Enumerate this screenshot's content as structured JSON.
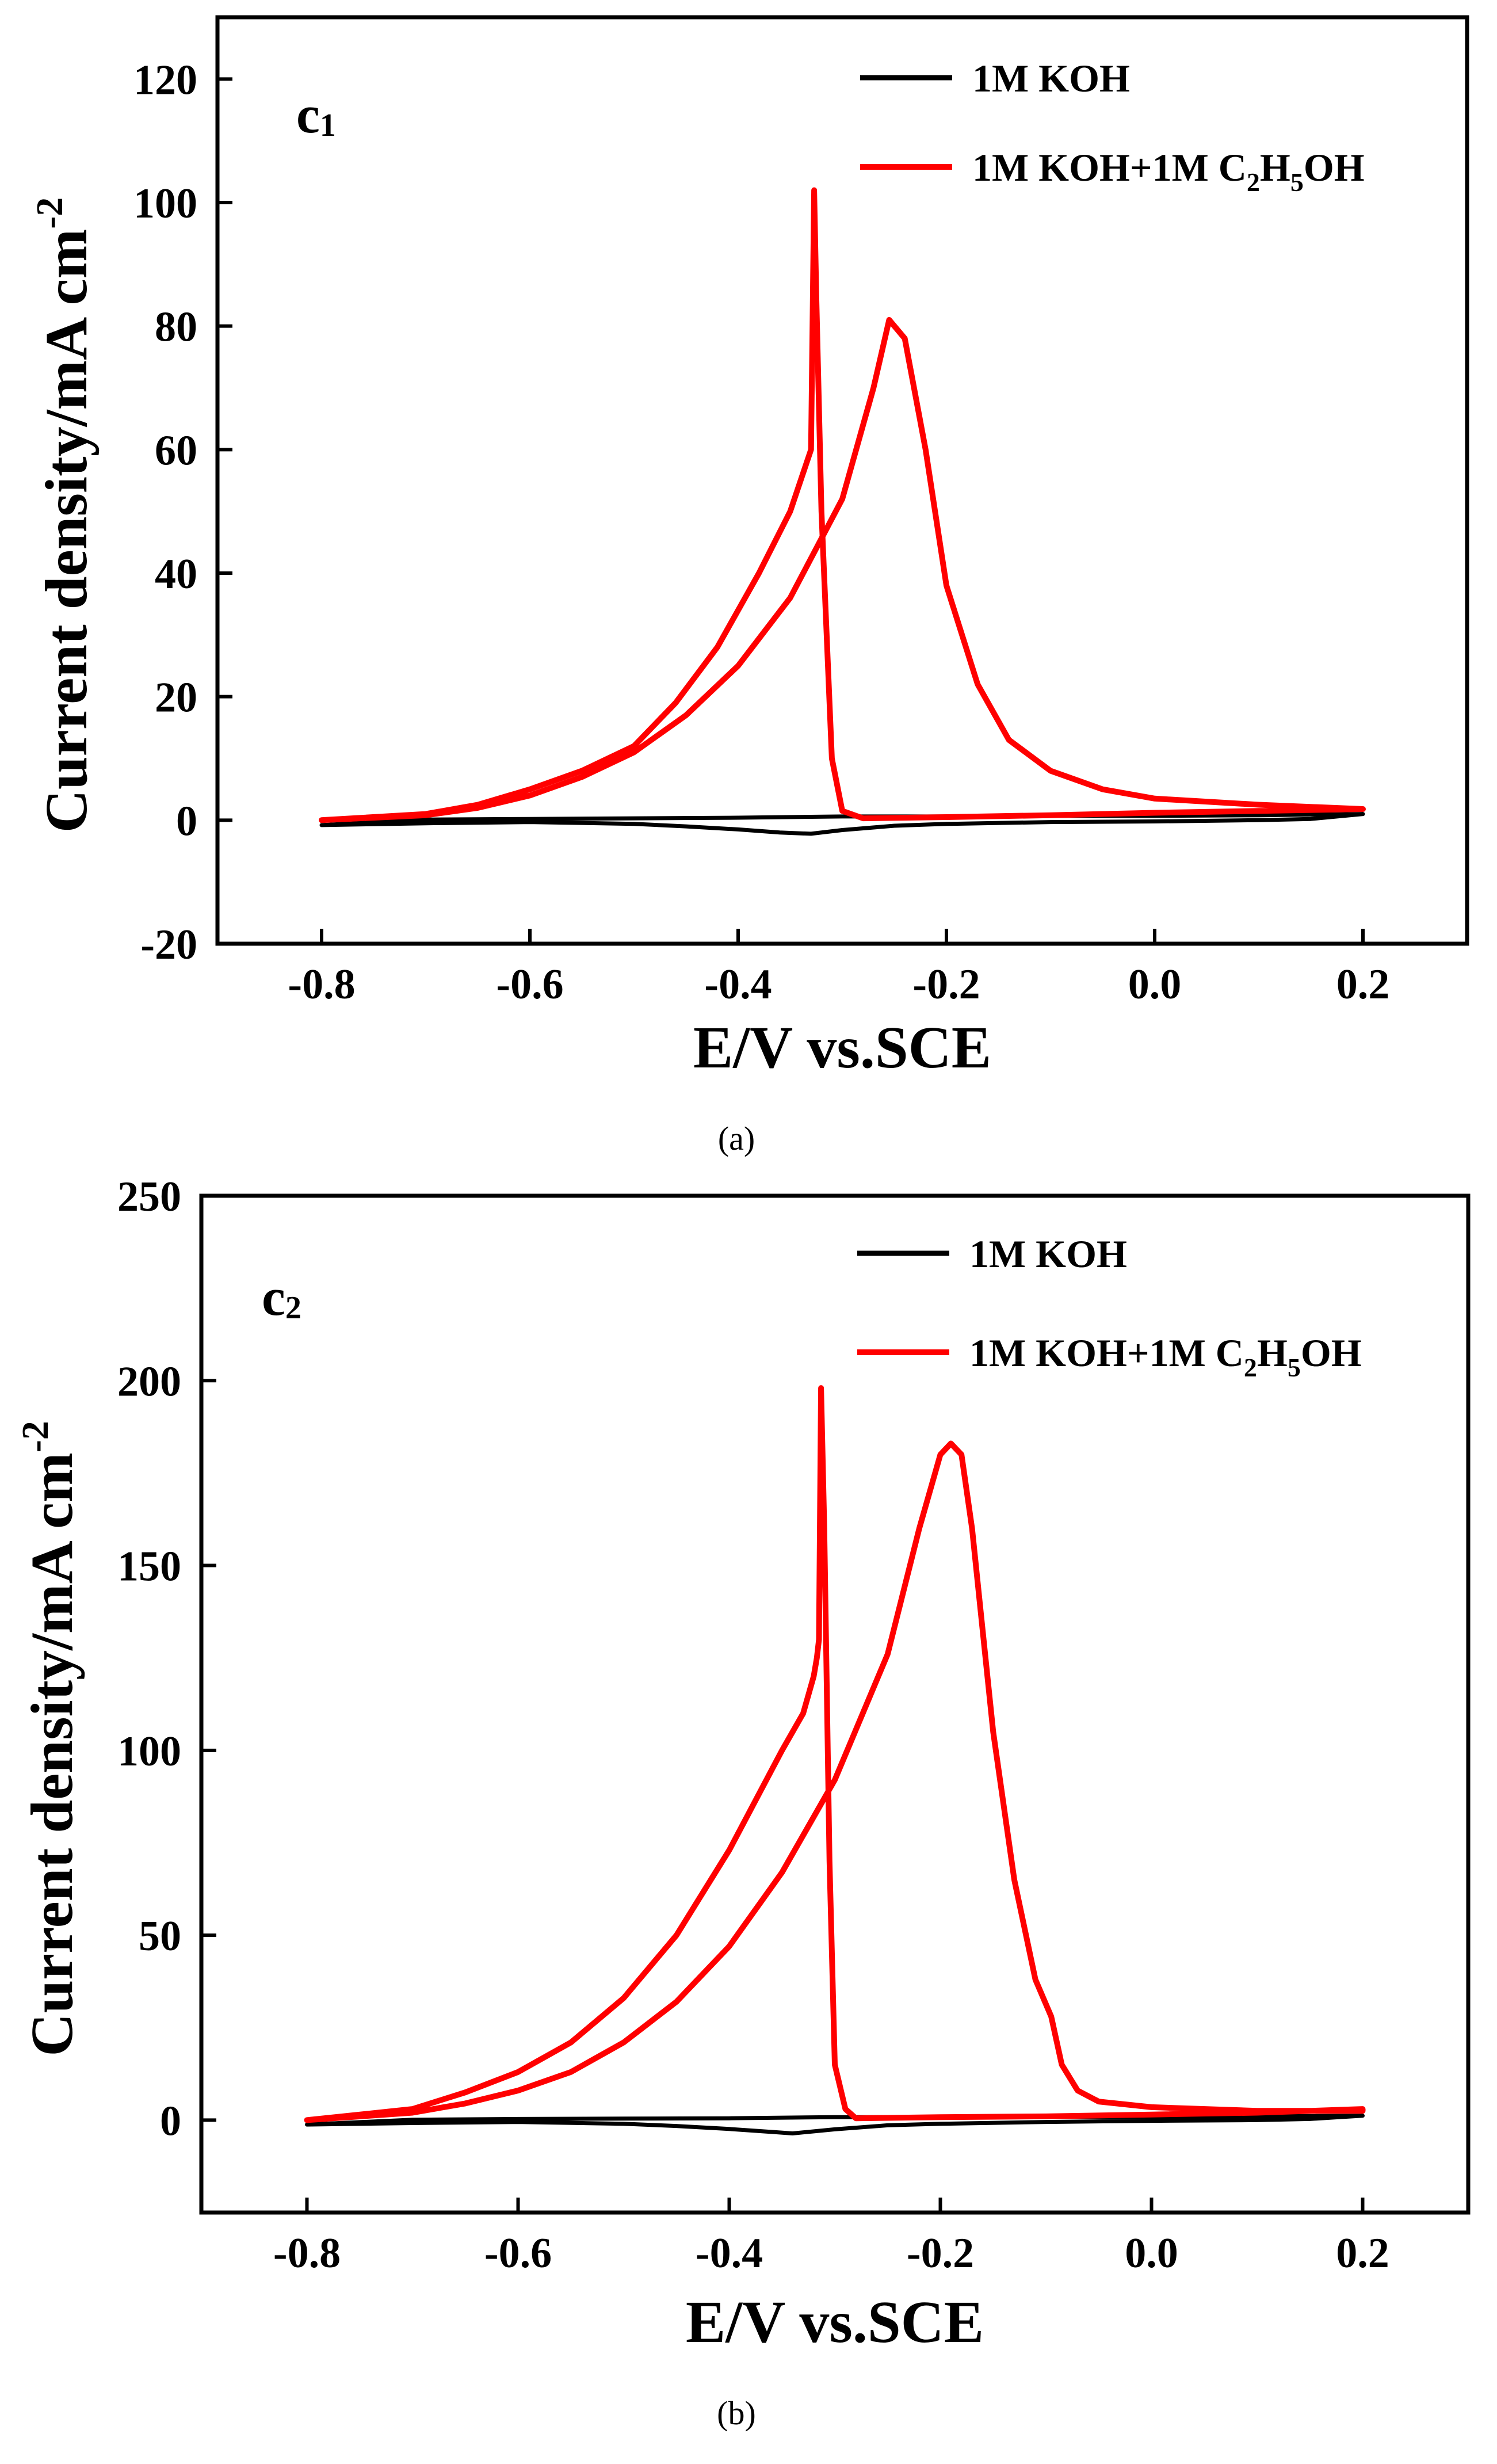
{
  "chart_data": [
    {
      "type": "line",
      "panel_label": "c",
      "panel_label_sub": "1",
      "caption": "(a)",
      "xlabel": "E/V vs.SCE",
      "ylabel": "Current density/mA cm",
      "ylabel_sup": "-2",
      "xlim": [
        -0.9,
        0.3
      ],
      "ylim": [
        -20,
        130
      ],
      "xticks": [
        -0.8,
        -0.6,
        -0.4,
        -0.2,
        0.0,
        0.2
      ],
      "xtick_labels": [
        "-0.8",
        "-0.6",
        "-0.4",
        "-0.2",
        "0.0",
        "0.2"
      ],
      "yticks": [
        -20,
        0,
        20,
        40,
        60,
        80,
        100,
        120
      ],
      "ytick_labels": [
        "-20",
        "0",
        "20",
        "40",
        "60",
        "80",
        "100",
        "120"
      ],
      "legend": {
        "placement": "top-right",
        "entries": [
          {
            "label": "1M KOH",
            "color": "#000000"
          },
          {
            "label_parts": [
              "1M KOH+1M C",
              "2",
              "H",
              "5",
              "OH"
            ],
            "color": "#ff0000"
          }
        ]
      },
      "series": [
        {
          "name": "1M KOH",
          "color": "#000000",
          "x": [
            -0.8,
            -0.7,
            -0.6,
            -0.5,
            -0.45,
            -0.4,
            -0.36,
            -0.33,
            -0.3,
            -0.25,
            -0.2,
            -0.1,
            0.0,
            0.1,
            0.15,
            0.2,
            0.2,
            0.1,
            0.0,
            -0.1,
            -0.2,
            -0.3,
            -0.4,
            -0.5,
            -0.6,
            -0.7,
            -0.8
          ],
          "y": [
            -0.8,
            -0.5,
            -0.3,
            -0.6,
            -1.0,
            -1.5,
            -2.0,
            -2.2,
            -1.6,
            -0.9,
            -0.6,
            -0.3,
            -0.2,
            0.0,
            0.2,
            1.0,
            1.0,
            0.8,
            0.7,
            0.7,
            0.6,
            0.6,
            0.4,
            0.3,
            0.2,
            0.1,
            -0.8
          ]
        },
        {
          "name": "1M KOH+1M C2H5OH",
          "color": "#ff0000",
          "x": [
            -0.8,
            -0.7,
            -0.65,
            -0.6,
            -0.55,
            -0.5,
            -0.45,
            -0.4,
            -0.35,
            -0.3,
            -0.27,
            -0.255,
            -0.24,
            -0.22,
            -0.2,
            -0.17,
            -0.14,
            -0.1,
            -0.05,
            0.0,
            0.1,
            0.2,
            0.2,
            0.1,
            0.0,
            -0.1,
            -0.2,
            -0.28,
            -0.3,
            -0.31,
            -0.32,
            -0.325,
            -0.327,
            -0.33,
            -0.35,
            -0.38,
            -0.42,
            -0.46,
            -0.5,
            -0.55,
            -0.6,
            -0.65,
            -0.7,
            -0.8
          ],
          "y": [
            0,
            0.8,
            2.0,
            4.0,
            7.0,
            11.0,
            17.0,
            25.0,
            36.0,
            52.0,
            70.0,
            81.0,
            78.0,
            60.0,
            38.0,
            22.0,
            13.0,
            8.0,
            5.0,
            3.5,
            2.5,
            1.8,
            1.8,
            1.5,
            1.2,
            0.8,
            0.5,
            0.3,
            1.5,
            10.0,
            50.0,
            85.0,
            102.0,
            60.0,
            50.0,
            40.0,
            28.0,
            19.0,
            12.0,
            8.0,
            5.0,
            2.5,
            1.0,
            0
          ]
        }
      ]
    },
    {
      "type": "line",
      "panel_label": "c",
      "panel_label_sub": "2",
      "caption": "(b)",
      "xlabel": "E/V vs.SCE",
      "ylabel": "Current density/mA cm",
      "ylabel_sup": "-2",
      "xlim": [
        -0.9,
        0.3
      ],
      "ylim": [
        -25,
        250
      ],
      "xticks": [
        -0.8,
        -0.6,
        -0.4,
        -0.2,
        0.0,
        0.2
      ],
      "xtick_labels": [
        "-0.8",
        "-0.6",
        "-0.4",
        "-0.2",
        "0.0",
        "0.2"
      ],
      "yticks": [
        0,
        50,
        100,
        150,
        200,
        250
      ],
      "ytick_labels": [
        "0",
        "50",
        "100",
        "150",
        "200",
        "250"
      ],
      "legend": {
        "placement": "top-right",
        "entries": [
          {
            "label": "1M KOH",
            "color": "#000000"
          },
          {
            "label_parts": [
              "1M KOH+1M C",
              "2",
              "H",
              "5",
              "OH"
            ],
            "color": "#ff0000"
          }
        ]
      },
      "series": [
        {
          "name": "1M KOH",
          "color": "#000000",
          "x": [
            -0.8,
            -0.7,
            -0.6,
            -0.5,
            -0.45,
            -0.4,
            -0.36,
            -0.34,
            -0.3,
            -0.25,
            -0.2,
            -0.1,
            0.0,
            0.1,
            0.15,
            0.2,
            0.2,
            0.1,
            0.0,
            -0.1,
            -0.2,
            -0.3,
            -0.4,
            -0.5,
            -0.6,
            -0.7,
            -0.8
          ],
          "y": [
            -1.2,
            -0.8,
            -0.5,
            -1.0,
            -1.6,
            -2.4,
            -3.2,
            -3.6,
            -2.5,
            -1.4,
            -1.0,
            -0.5,
            -0.2,
            0.0,
            0.3,
            1.2,
            1.2,
            1.0,
            0.9,
            0.9,
            0.8,
            0.8,
            0.5,
            0.4,
            0.3,
            0.1,
            -1.2
          ]
        },
        {
          "name": "1M KOH+1M C2H5OH",
          "color": "#ff0000",
          "x": [
            -0.8,
            -0.7,
            -0.65,
            -0.6,
            -0.55,
            -0.5,
            -0.45,
            -0.4,
            -0.35,
            -0.3,
            -0.25,
            -0.22,
            -0.2,
            -0.19,
            -0.18,
            -0.17,
            -0.15,
            -0.13,
            -0.11,
            -0.095,
            -0.085,
            -0.07,
            -0.05,
            0.0,
            0.1,
            0.2,
            0.2,
            0.1,
            0.0,
            -0.1,
            -0.2,
            -0.28,
            -0.29,
            -0.3,
            -0.305,
            -0.31,
            -0.313,
            -0.315,
            -0.317,
            -0.32,
            -0.33,
            -0.35,
            -0.4,
            -0.45,
            -0.5,
            -0.55,
            -0.6,
            -0.65,
            -0.7,
            -0.8
          ],
          "y": [
            0,
            2.0,
            4.5,
            8.0,
            13.0,
            21.0,
            32.0,
            47.0,
            67.0,
            92.0,
            126.0,
            160.0,
            180.0,
            183.0,
            180.0,
            160.0,
            105.0,
            65.0,
            38.0,
            28.0,
            15.0,
            8.0,
            5.0,
            3.5,
            2.5,
            2.5,
            3.0,
            2.0,
            1.5,
            1.0,
            0.8,
            0.5,
            3.0,
            15.0,
            70.0,
            160.0,
            198.0,
            130.0,
            125.0,
            120.0,
            110.0,
            100.0,
            73.0,
            50.0,
            33.0,
            21.0,
            13.0,
            7.5,
            3.0,
            0
          ]
        }
      ]
    }
  ]
}
